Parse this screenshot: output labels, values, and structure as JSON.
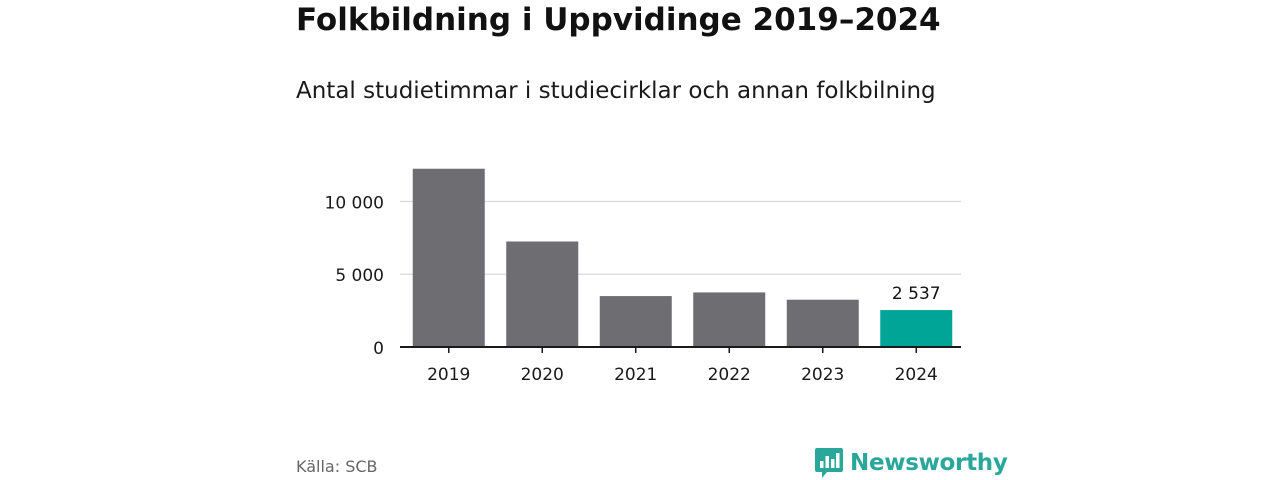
{
  "header": {
    "title": "Folkbildning i Uppvidinge 2019–2024",
    "subtitle": "Antal studietimmar i studiecirklar och annan folkbilning"
  },
  "footer": {
    "source": "Källa: SCB",
    "brand": "Newsworthy"
  },
  "colors": {
    "bar": "#6e6d72",
    "highlight": "#00a598",
    "grid": "#d9d9d9",
    "axis": "#1a1a1a",
    "brand": "#2aa79b"
  },
  "chart_data": {
    "type": "bar",
    "title": "Folkbildning i Uppvidinge 2019–2024",
    "subtitle": "Antal studietimmar i studiecirklar och annan folkbilning",
    "categories": [
      "2019",
      "2020",
      "2021",
      "2022",
      "2023",
      "2024"
    ],
    "values": [
      12250,
      7250,
      3500,
      3750,
      3250,
      2537
    ],
    "highlight_index": 5,
    "data_labels": [
      {
        "index": 5,
        "text": "2 537"
      }
    ],
    "yticks": [
      {
        "value": 0,
        "label": "0"
      },
      {
        "value": 5000,
        "label": "5 000"
      },
      {
        "value": 10000,
        "label": "10 000"
      }
    ],
    "ylim": [
      0,
      13400
    ],
    "xlabel": "",
    "ylabel": "",
    "grid": true,
    "legend": "none"
  }
}
